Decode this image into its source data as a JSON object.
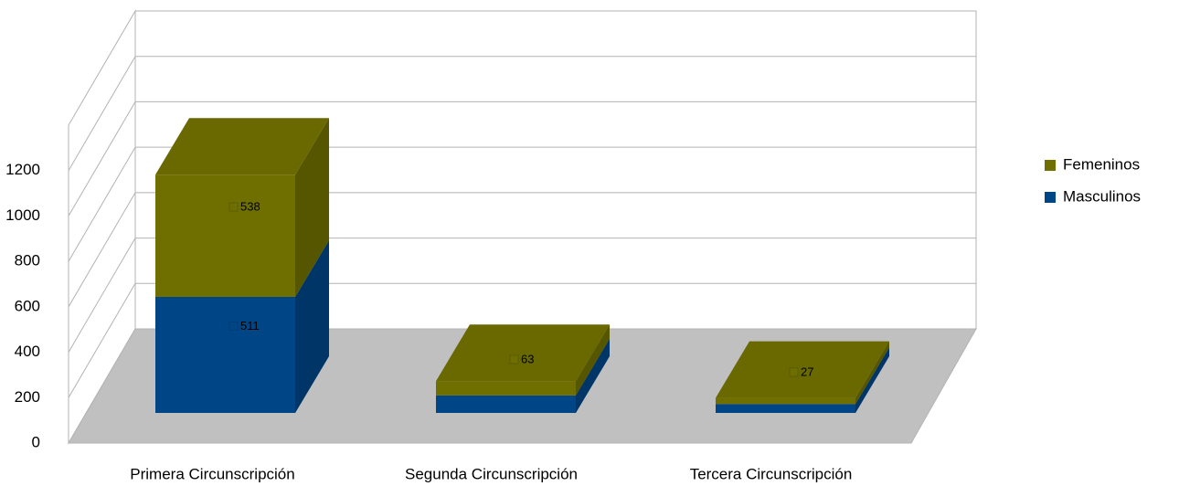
{
  "chart_data": {
    "type": "bar3d-stacked",
    "categories": [
      "Primera Circunscripción",
      "Segunda Circunscripción",
      "Tercera Circunscripción"
    ],
    "series": [
      {
        "name": "Masculinos",
        "color": "#004586",
        "values": [
          511,
          77,
          39
        ]
      },
      {
        "name": "Femeninos",
        "color": "#6f6f00",
        "values": [
          538,
          63,
          27
        ]
      }
    ],
    "ylim": [
      0,
      1400
    ],
    "yticks": [
      0,
      200,
      400,
      600,
      800,
      1000,
      1200
    ],
    "grid": true,
    "legend": "right"
  }
}
